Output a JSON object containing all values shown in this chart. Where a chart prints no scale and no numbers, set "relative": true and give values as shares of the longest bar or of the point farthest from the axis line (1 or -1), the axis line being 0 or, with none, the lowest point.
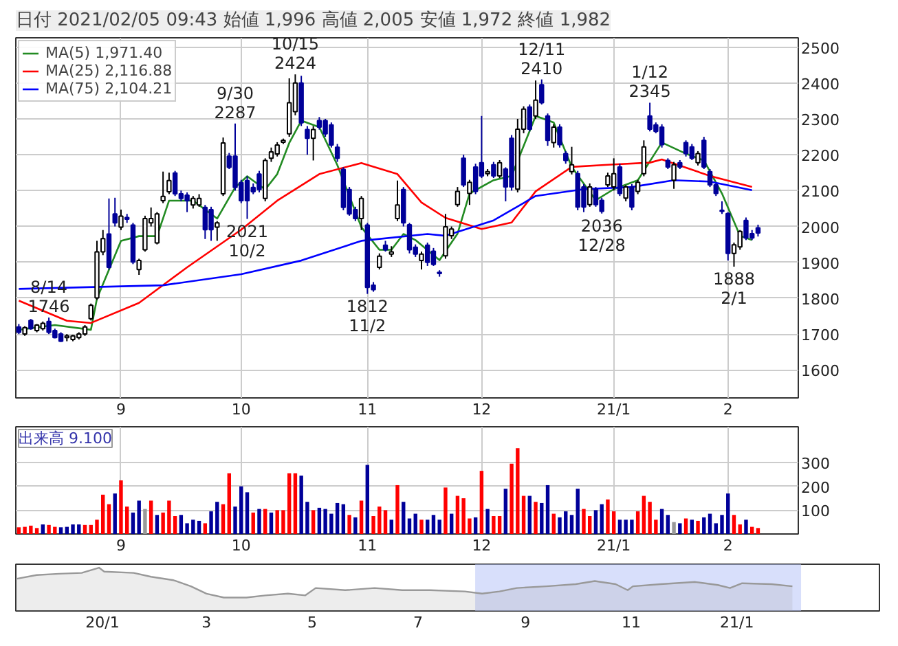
{
  "chart_data": [
    {
      "type": "candlestick",
      "title": "日付 2021/02/05 09:43 始値 1,996 高値 2,005 安値 1,972 終値 1,982",
      "categories": [
        null,
        null,
        null,
        null,
        null,
        null,
        null,
        null,
        null,
        null,
        null,
        null,
        null,
        null,
        null,
        null,
        null,
        "9",
        null,
        null,
        null,
        null,
        null,
        null,
        null,
        null,
        null,
        null,
        null,
        null,
        null,
        null,
        null,
        null,
        null,
        null,
        null,
        "10",
        null,
        null,
        null,
        null,
        null,
        null,
        null,
        null,
        null,
        null,
        null,
        null,
        null,
        null,
        null,
        null,
        null,
        null,
        null,
        null,
        "11",
        null,
        null,
        null,
        null,
        null,
        null,
        null,
        null,
        null,
        null,
        null,
        null,
        null,
        null,
        null,
        null,
        null,
        null,
        "12",
        null,
        null,
        null,
        null,
        null,
        null,
        null,
        null,
        null,
        null,
        null,
        null,
        null,
        null,
        null,
        null,
        null,
        null,
        null,
        null,
        null,
        "21/1",
        null,
        null,
        null,
        null,
        null,
        null,
        null,
        null,
        null,
        null,
        null,
        null,
        null,
        null,
        null,
        null,
        null,
        null,
        "2",
        null,
        null,
        null,
        null,
        null
      ],
      "ohlc": [
        [
          1720,
          1728,
          1700,
          1705
        ],
        [
          1700,
          1722,
          1695,
          1718
        ],
        [
          1738,
          1742,
          1712,
          1715
        ],
        [
          1710,
          1728,
          1705,
          1725
        ],
        [
          1715,
          1735,
          1710,
          1730
        ],
        [
          1735,
          1746,
          1700,
          1705
        ],
        [
          1710,
          1715,
          1688,
          1690
        ],
        [
          1700,
          1705,
          1678,
          1680
        ],
        [
          1690,
          1700,
          1680,
          1695
        ],
        [
          1685,
          1698,
          1680,
          1695
        ],
        [
          1690,
          1705,
          1685,
          1700
        ],
        [
          1700,
          1725,
          1695,
          1720
        ],
        [
          1743,
          1785,
          1738,
          1780
        ],
        [
          1801,
          1960,
          1795,
          1929
        ],
        [
          1929,
          1990,
          1920,
          1966
        ],
        [
          1979,
          2078,
          1880,
          1886
        ],
        [
          2035,
          2080,
          2000,
          2010
        ],
        [
          1998,
          2047,
          1990,
          2029
        ],
        [
          2025,
          2035,
          2010,
          2020
        ],
        [
          2004,
          2010,
          1895,
          1901
        ],
        [
          1880,
          1910,
          1865,
          1905
        ],
        [
          1935,
          2030,
          1930,
          2022
        ],
        [
          2010,
          2053,
          2000,
          2022
        ],
        [
          1954,
          2040,
          1950,
          2035
        ],
        [
          2072,
          2153,
          2065,
          2084
        ],
        [
          2097,
          2150,
          2090,
          2128
        ],
        [
          2149,
          2155,
          2085,
          2091
        ],
        [
          2091,
          2100,
          2070,
          2078
        ],
        [
          2087,
          2095,
          2040,
          2072
        ],
        [
          2060,
          2085,
          2050,
          2078
        ],
        [
          2060,
          2090,
          2055,
          2078
        ],
        [
          2053,
          2060,
          1965,
          1991
        ],
        [
          2047,
          2055,
          1960,
          1991
        ],
        [
          1998,
          2015,
          1960,
          2010
        ],
        [
          2091,
          2248,
          2085,
          2233
        ],
        [
          2196,
          2205,
          2160,
          2165
        ],
        [
          2196,
          2287,
          2100,
          2109
        ],
        [
          2122,
          2130,
          2065,
          2072
        ],
        [
          2128,
          2140,
          2021,
          2072
        ],
        [
          2109,
          2120,
          2090,
          2097
        ],
        [
          2146,
          2155,
          2095,
          2103
        ],
        [
          2078,
          2190,
          2070,
          2184
        ],
        [
          2190,
          2220,
          2180,
          2208
        ],
        [
          2202,
          2235,
          2195,
          2227
        ],
        [
          2235,
          2245,
          2230,
          2240
        ],
        [
          2258,
          2413,
          2250,
          2345
        ],
        [
          2320,
          2424,
          2310,
          2400
        ],
        [
          2400,
          2420,
          2280,
          2289
        ],
        [
          2270,
          2280,
          2200,
          2246
        ],
        [
          2246,
          2280,
          2184,
          2270
        ],
        [
          2295,
          2305,
          2270,
          2277
        ],
        [
          2295,
          2300,
          2250,
          2258
        ],
        [
          2283,
          2290,
          2220,
          2227
        ],
        [
          2221,
          2230,
          2180,
          2190
        ],
        [
          2159,
          2165,
          2045,
          2053
        ],
        [
          2103,
          2110,
          2030,
          2035
        ],
        [
          2047,
          2055,
          2015,
          2022
        ],
        [
          2022,
          2085,
          1990,
          2078
        ],
        [
          2004,
          2010,
          1812,
          1830
        ],
        [
          1836,
          1845,
          1818,
          1824
        ],
        [
          1886,
          1925,
          1880,
          1917
        ],
        [
          1948,
          1960,
          1930,
          1935
        ],
        [
          1923,
          1945,
          1915,
          1929
        ],
        [
          2022,
          2128,
          2015,
          2060
        ],
        [
          2103,
          2110,
          2000,
          2010
        ],
        [
          2005,
          2010,
          1925,
          1935
        ],
        [
          1942,
          1950,
          1915,
          1923
        ],
        [
          1905,
          1930,
          1880,
          1923
        ],
        [
          1948,
          1955,
          1890,
          1900
        ],
        [
          1931,
          1940,
          1890,
          1894
        ],
        [
          1872,
          1878,
          1860,
          1869
        ],
        [
          1918,
          2035,
          1910,
          1999
        ],
        [
          1974,
          2000,
          1965,
          1993
        ],
        [
          2061,
          2110,
          2055,
          2098
        ],
        [
          2190,
          2200,
          2110,
          2116
        ],
        [
          2092,
          2130,
          2060,
          2123
        ],
        [
          2166,
          2175,
          2090,
          2098
        ],
        [
          2178,
          2308,
          2135,
          2141
        ],
        [
          2147,
          2160,
          2140,
          2153
        ],
        [
          2172,
          2180,
          2135,
          2141
        ],
        [
          2141,
          2185,
          2135,
          2178
        ],
        [
          2160,
          2165,
          2070,
          2110
        ],
        [
          2246,
          2255,
          2100,
          2110
        ],
        [
          2104,
          2300,
          2095,
          2271
        ],
        [
          2271,
          2335,
          2260,
          2327
        ],
        [
          2333,
          2340,
          2265,
          2271
        ],
        [
          2308,
          2407,
          2300,
          2352
        ],
        [
          2395,
          2410,
          2340,
          2345
        ],
        [
          2308,
          2315,
          2225,
          2240
        ],
        [
          2234,
          2285,
          2220,
          2277
        ],
        [
          2277,
          2285,
          2220,
          2228
        ],
        [
          2203,
          2210,
          2175,
          2184
        ],
        [
          2153,
          2222,
          2145,
          2172
        ],
        [
          2147,
          2155,
          2045,
          2054
        ],
        [
          2110,
          2118,
          2040,
          2054
        ],
        [
          2061,
          2120,
          2055,
          2110
        ],
        [
          2104,
          2110,
          2055,
          2061
        ],
        [
          2073,
          2080,
          2036,
          2042
        ],
        [
          2116,
          2150,
          2110,
          2141
        ],
        [
          2110,
          2190,
          2100,
          2147
        ],
        [
          2166,
          2175,
          2085,
          2092
        ],
        [
          2079,
          2115,
          2070,
          2110
        ],
        [
          2110,
          2118,
          2045,
          2054
        ],
        [
          2098,
          2130,
          2090,
          2123
        ],
        [
          2147,
          2240,
          2140,
          2222
        ],
        [
          2308,
          2345,
          2265,
          2271
        ],
        [
          2283,
          2290,
          2260,
          2265
        ],
        [
          2277,
          2285,
          2220,
          2228
        ],
        [
          2184,
          2190,
          2160,
          2166
        ],
        [
          2129,
          2180,
          2105,
          2172
        ],
        [
          2178,
          2185,
          2160,
          2166
        ],
        [
          2234,
          2240,
          2195,
          2203
        ],
        [
          2222,
          2230,
          2185,
          2190
        ],
        [
          2178,
          2210,
          2170,
          2203
        ],
        [
          2240,
          2250,
          2160,
          2166
        ],
        [
          2153,
          2160,
          2110,
          2116
        ],
        [
          2116,
          2120,
          2085,
          2092
        ],
        [
          2045,
          2070,
          2035,
          2042
        ],
        [
          2036,
          2040,
          1905,
          1925
        ],
        [
          1925,
          1955,
          1888,
          1949
        ],
        [
          1943,
          1990,
          1935,
          1986
        ],
        [
          2017,
          2025,
          1962,
          1968
        ],
        [
          1980,
          1990,
          1962,
          1968
        ],
        [
          1996,
          2005,
          1972,
          1982
        ]
      ],
      "series": [
        {
          "type": "line",
          "name": "MA(5) 1,971.40",
          "color": "#228b22",
          "values": [
            1712,
            null,
            null,
            null,
            null,
            null,
            1725,
            null,
            null,
            null,
            null,
            null,
            1712,
            1799,
            null,
            null,
            null,
            1960,
            null,
            null,
            1973,
            null,
            null,
            1973,
            null,
            2072,
            null,
            null,
            null,
            2072,
            null,
            null,
            null,
            2022,
            null,
            null,
            2109,
            null,
            2140,
            null,
            null,
            2103,
            null,
            2146,
            null,
            2233,
            null,
            2295,
            null,
            null,
            2277,
            null,
            null,
            2171,
            null,
            null,
            null,
            1998,
            null,
            null,
            1935,
            null,
            1935,
            null,
            1979,
            null,
            1962,
            null,
            null,
            null,
            1906,
            null,
            null,
            1980,
            null,
            2092,
            null,
            null,
            null,
            2129,
            null,
            null,
            2141,
            null,
            null,
            null,
            2308,
            null,
            null,
            2290,
            null,
            null,
            2166,
            null,
            null,
            null,
            2073,
            null,
            null,
            2104,
            null,
            null,
            null,
            2129,
            null,
            null,
            null,
            2234,
            null,
            null,
            null,
            2203,
            null,
            null,
            2184,
            null,
            null,
            2092,
            null,
            null,
            1974,
            null,
            1962,
            null
          ]
        },
        {
          "type": "line",
          "name": "MA(25) 2,116.88",
          "color": "#ff0000",
          "values": [
            1793,
            null,
            null,
            null,
            null,
            null,
            null,
            null,
            1737,
            null,
            null,
            null,
            1731,
            null,
            null,
            null,
            null,
            null,
            null,
            null,
            1787,
            null,
            null,
            null,
            null,
            null,
            null,
            null,
            1886,
            null,
            null,
            null,
            null,
            null,
            null,
            null,
            null,
            1991,
            null,
            null,
            null,
            null,
            null,
            2072,
            null,
            null,
            null,
            null,
            null,
            null,
            2146,
            null,
            null,
            null,
            null,
            null,
            null,
            2177,
            null,
            null,
            null,
            null,
            null,
            2146,
            null,
            null,
            null,
            2067,
            null,
            null,
            null,
            2024,
            null,
            null,
            null,
            null,
            null,
            1993,
            null,
            null,
            null,
            null,
            2011,
            null,
            null,
            null,
            2098,
            null,
            null,
            null,
            null,
            null,
            2166,
            null,
            null,
            null,
            null,
            null,
            2172,
            null,
            null,
            null,
            null,
            null,
            null,
            2178,
            null,
            2187,
            null,
            null,
            null,
            null,
            null,
            null,
            null,
            2141,
            null,
            null,
            null,
            null,
            null,
            null,
            2110,
            null
          ]
        },
        {
          "type": "line",
          "name": "MA(75) 2,104.21",
          "color": "#0000ff",
          "values": [
            1826,
            null,
            null,
            null,
            null,
            null,
            null,
            null,
            null,
            null,
            null,
            null,
            null,
            null,
            null,
            null,
            null,
            null,
            null,
            null,
            null,
            null,
            null,
            null,
            1836,
            null,
            null,
            null,
            null,
            null,
            null,
            null,
            null,
            null,
            null,
            null,
            null,
            1867,
            null,
            null,
            null,
            null,
            null,
            null,
            null,
            null,
            null,
            1905,
            null,
            null,
            null,
            null,
            null,
            null,
            null,
            null,
            null,
            1960,
            null,
            null,
            null,
            null,
            null,
            null,
            null,
            null,
            null,
            null,
            1979,
            null,
            null,
            1974,
            null,
            null,
            null,
            null,
            null,
            null,
            null,
            2017,
            null,
            null,
            null,
            null,
            null,
            null,
            2085,
            null,
            null,
            null,
            null,
            null,
            null,
            null,
            2104,
            null,
            null,
            null,
            null,
            null,
            null,
            null,
            2110,
            null,
            null,
            null,
            null,
            null,
            null,
            2129,
            null,
            null,
            null,
            null,
            null,
            2125,
            null,
            null,
            null,
            null,
            null,
            null,
            2101,
            null
          ]
        }
      ],
      "annotations": [
        {
          "text": "8/14\n1746",
          "y": 1746
        },
        {
          "text": "9/30\n2287",
          "y": 2287
        },
        {
          "text": "2021\n10/2",
          "y": 2021
        },
        {
          "text": "10/15\n2424",
          "y": 2424
        },
        {
          "text": "1812\n11/2",
          "y": 1812
        },
        {
          "text": "12/11\n2410",
          "y": 2410
        },
        {
          "text": "2036\n12/28",
          "y": 2036
        },
        {
          "text": "1/12\n2345",
          "y": 2345
        },
        {
          "text": "1888\n2/1",
          "y": 1888
        }
      ],
      "ylim": [
        1522,
        2526
      ],
      "yticks": [
        1600,
        1700,
        1800,
        1900,
        2000,
        2100,
        2200,
        2300,
        2400,
        2500
      ],
      "grid": true,
      "legend": "top left"
    },
    {
      "type": "bar",
      "title": "出来高 9.100",
      "categories": [
        null,
        null,
        null,
        null,
        null,
        null,
        null,
        null,
        null,
        null,
        null,
        null,
        null,
        null,
        null,
        null,
        null,
        "9",
        null,
        null,
        null,
        null,
        null,
        null,
        null,
        null,
        null,
        null,
        null,
        null,
        null,
        null,
        null,
        null,
        null,
        null,
        null,
        "10",
        null,
        null,
        null,
        null,
        null,
        null,
        null,
        null,
        null,
        null,
        null,
        null,
        null,
        null,
        null,
        null,
        null,
        null,
        null,
        null,
        "11",
        null,
        null,
        null,
        null,
        null,
        null,
        null,
        null,
        null,
        null,
        null,
        null,
        null,
        null,
        null,
        null,
        null,
        null,
        "12",
        null,
        null,
        null,
        null,
        null,
        null,
        null,
        null,
        null,
        null,
        null,
        null,
        null,
        null,
        null,
        null,
        null,
        null,
        null,
        null,
        null,
        "21/1",
        null,
        null,
        null,
        null,
        null,
        null,
        null,
        null,
        null,
        null,
        null,
        null,
        null,
        null,
        null,
        null,
        null,
        null,
        "2",
        null,
        null,
        null,
        null,
        null
      ],
      "values": [
        28,
        30,
        35,
        25,
        40,
        38,
        30,
        28,
        30,
        40,
        40,
        38,
        38,
        60,
        165,
        125,
        170,
        225,
        115,
        90,
        140,
        105,
        140,
        80,
        90,
        140,
        75,
        80,
        45,
        60,
        55,
        45,
        95,
        135,
        125,
        255,
        115,
        200,
        175,
        90,
        105,
        105,
        90,
        100,
        100,
        255,
        255,
        245,
        135,
        100,
        110,
        105,
        85,
        130,
        125,
        80,
        70,
        140,
        290,
        75,
        115,
        100,
        60,
        205,
        135,
        65,
        85,
        60,
        60,
        80,
        60,
        195,
        85,
        160,
        150,
        65,
        70,
        265,
        105,
        75,
        75,
        190,
        295,
        360,
        160,
        160,
        135,
        130,
        205,
        85,
        70,
        95,
        80,
        190,
        105,
        75,
        100,
        125,
        145,
        95,
        60,
        60,
        60,
        95,
        160,
        135,
        60,
        105,
        80,
        50,
        45,
        65,
        60,
        55,
        70,
        85,
        45,
        80,
        170,
        80,
        40,
        60,
        30,
        25
      ],
      "colors": [
        "#ff0000",
        "#ff0000",
        "#ff0000",
        "#ff0000",
        "#000099",
        "#ff0000",
        "#ff0000",
        "#000099",
        "#000099",
        "#000099",
        "#000099",
        "#ff0000",
        "#ff0000",
        "#ff0000",
        "#ff0000",
        "#ff0000",
        "#000099",
        "#ff0000",
        "#ff0000",
        "#000099",
        "#000099",
        "#999999",
        "#ff0000",
        "#000099",
        "#ff0000",
        "#ff0000",
        "#ff0000",
        "#000099",
        "#000099",
        "#000099",
        "#000099",
        "#ff0000",
        "#000099",
        "#000099",
        "#ff0000",
        "#ff0000",
        "#000099",
        "#000099",
        "#000099",
        "#ff0000",
        "#000099",
        "#ff0000",
        "#000099",
        "#ff0000",
        "#ff0000",
        "#ff0000",
        "#ff0000",
        "#000099",
        "#000099",
        "#ff0000",
        "#000099",
        "#000099",
        "#000099",
        "#000099",
        "#000099",
        "#ff0000",
        "#000099",
        "#ff0000",
        "#000099",
        "#ff0000",
        "#ff0000",
        "#ff0000",
        "#000099",
        "#ff0000",
        "#000099",
        "#000099",
        "#000099",
        "#ff0000",
        "#000099",
        "#000099",
        "#000099",
        "#ff0000",
        "#000099",
        "#ff0000",
        "#ff0000",
        "#ff0000",
        "#000099",
        "#ff0000",
        "#000099",
        "#ff0000",
        "#ff0000",
        "#000099",
        "#ff0000",
        "#ff0000",
        "#ff0000",
        "#000099",
        "#ff0000",
        "#000099",
        "#000099",
        "#ff0000",
        "#000099",
        "#000099",
        "#000099",
        "#000099",
        "#ff0000",
        "#ff0000",
        "#000099",
        "#000099",
        "#ff0000",
        "#ff0000",
        "#000099",
        "#000099",
        "#000099",
        "#ff0000",
        "#ff0000",
        "#ff0000",
        "#ff0000",
        "#000099",
        "#000099",
        "#999999",
        "#000099",
        "#ff0000",
        "#000099",
        "#ff0000",
        "#000099",
        "#000099",
        "#000099",
        "#000099",
        "#000099",
        "#ff0000",
        "#ff0000",
        "#000099",
        "#ff0000",
        "#ff0000"
      ],
      "ylim": [
        0,
        450
      ],
      "yticks": [
        100,
        200,
        300
      ],
      "grid": true
    },
    {
      "type": "area",
      "relative": true,
      "tick_labels": "x",
      "x": [
        "2019-11-12",
        "2019-11-24",
        "2019-12-07",
        "2019-12-20",
        "2019-12-30",
        "2020-01-02",
        "2020-01-19",
        "2020-01-29",
        "2020-02-11",
        "2020-02-21",
        "2020-03-01",
        "2020-03-11",
        "2020-03-24",
        "2020-04-04",
        "2020-04-17",
        "2020-04-27",
        "2020-05-03",
        "2020-05-20",
        "2020-06-06",
        "2020-06-22",
        "2020-07-08",
        "2020-07-28",
        "2020-08-07",
        "2020-08-17",
        "2020-08-27",
        "2020-09-13",
        "2020-09-30",
        "2020-10-11",
        "2020-10-23",
        "2020-10-30",
        "2020-11-02",
        "2020-11-18",
        "2020-12-08",
        "2020-12-21",
        "2020-12-28",
        "2021-01-04",
        "2021-01-21",
        "2021-02-02"
      ],
      "series": [
        {
          "color": "#999999",
          "values": [
            0.74,
            0.83,
            0.86,
            0.88,
            1.0,
            0.91,
            0.88,
            0.79,
            0.71,
            0.57,
            0.4,
            0.31,
            0.31,
            0.36,
            0.4,
            0.36,
            0.53,
            0.48,
            0.53,
            0.48,
            0.48,
            0.45,
            0.4,
            0.45,
            0.53,
            0.57,
            0.62,
            0.69,
            0.62,
            0.48,
            0.57,
            0.62,
            0.67,
            0.6,
            0.53,
            0.64,
            0.62,
            0.57
          ]
        }
      ],
      "bands": [
        {
          "axis": "x",
          "from": "2020-08-03",
          "to": "2021-02-07",
          "color": "#b8c4f8"
        }
      ],
      "xlim": [
        "2019-11-12",
        "2021-03-25"
      ],
      "xticks": [
        {
          "value": "2020-01",
          "label": "20/1"
        },
        {
          "value": "2020-03",
          "label": "3"
        },
        {
          "value": "2020-05",
          "label": "5"
        },
        {
          "value": "2020-07",
          "label": "7"
        },
        {
          "value": "2020-09",
          "label": "9"
        },
        {
          "value": "2020-11",
          "label": "11"
        },
        {
          "value": "2021-01",
          "label": "21/1"
        }
      ]
    }
  ]
}
